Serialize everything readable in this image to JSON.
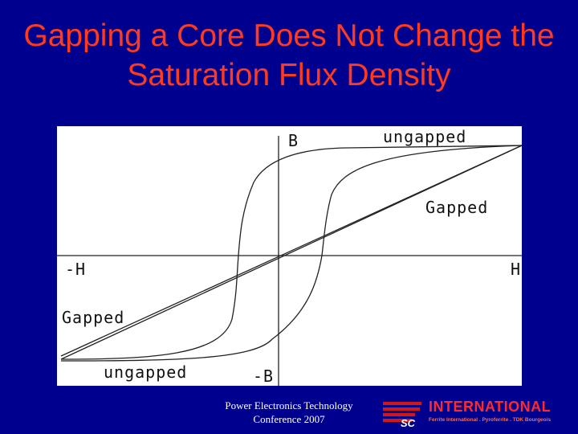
{
  "slide": {
    "title": "Gapping a Core Does Not Change the Saturation Flux Density"
  },
  "diagram": {
    "axis_labels": {
      "b_pos": "B",
      "b_neg": "-B",
      "h_pos": "H",
      "h_neg": "-H"
    },
    "curve_labels": {
      "ungapped_top": "ungapped",
      "ungapped_bottom": "ungapped",
      "gapped_right": "Gapped",
      "gapped_left": "Gapped"
    }
  },
  "footer": {
    "line1": "Power Electronics Technology",
    "line2": "Conference 2007"
  },
  "logo": {
    "mark_text": "SC",
    "name": "INTERNATIONAL",
    "subtitle": "Ferrite International . Pyroferrite . TDK Bourgeois",
    "name_color": "#ff2a2a"
  }
}
